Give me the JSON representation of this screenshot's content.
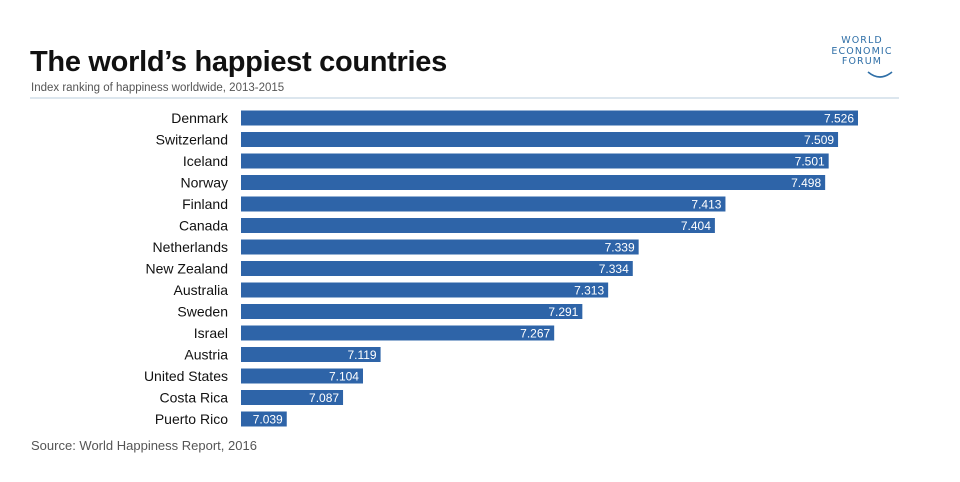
{
  "title": "The world’s happiest countries",
  "subtitle": "Index ranking of happiness worldwide, 2013-2015",
  "source": "Source: World Happiness Report, 2016",
  "logo": {
    "lines": [
      "WORLD",
      "ECONOMIC",
      "FORUM"
    ]
  },
  "colors": {
    "bar": "#2e64a8",
    "label": "#111111",
    "value_text": "#ffffff"
  },
  "chart_data": {
    "type": "bar",
    "orientation": "horizontal",
    "categories": [
      "Denmark",
      "Switzerland",
      "Iceland",
      "Norway",
      "Finland",
      "Canada",
      "Netherlands",
      "New Zealand",
      "Australia",
      "Sweden",
      "Israel",
      "Austria",
      "United States",
      "Costa Rica",
      "Puerto Rico"
    ],
    "values": [
      7.526,
      7.509,
      7.501,
      7.498,
      7.413,
      7.404,
      7.339,
      7.334,
      7.313,
      7.291,
      7.267,
      7.119,
      7.104,
      7.087,
      7.039
    ],
    "value_labels": [
      "7.526",
      "7.509",
      "7.501",
      "7.498",
      "7.413",
      "7.404",
      "7.339",
      "7.334",
      "7.313",
      "7.291",
      "7.267",
      "7.119",
      "7.104",
      "7.087",
      "7.039"
    ],
    "xlim": [
      7.0,
      7.55
    ],
    "grid": false,
    "legend": "none"
  }
}
